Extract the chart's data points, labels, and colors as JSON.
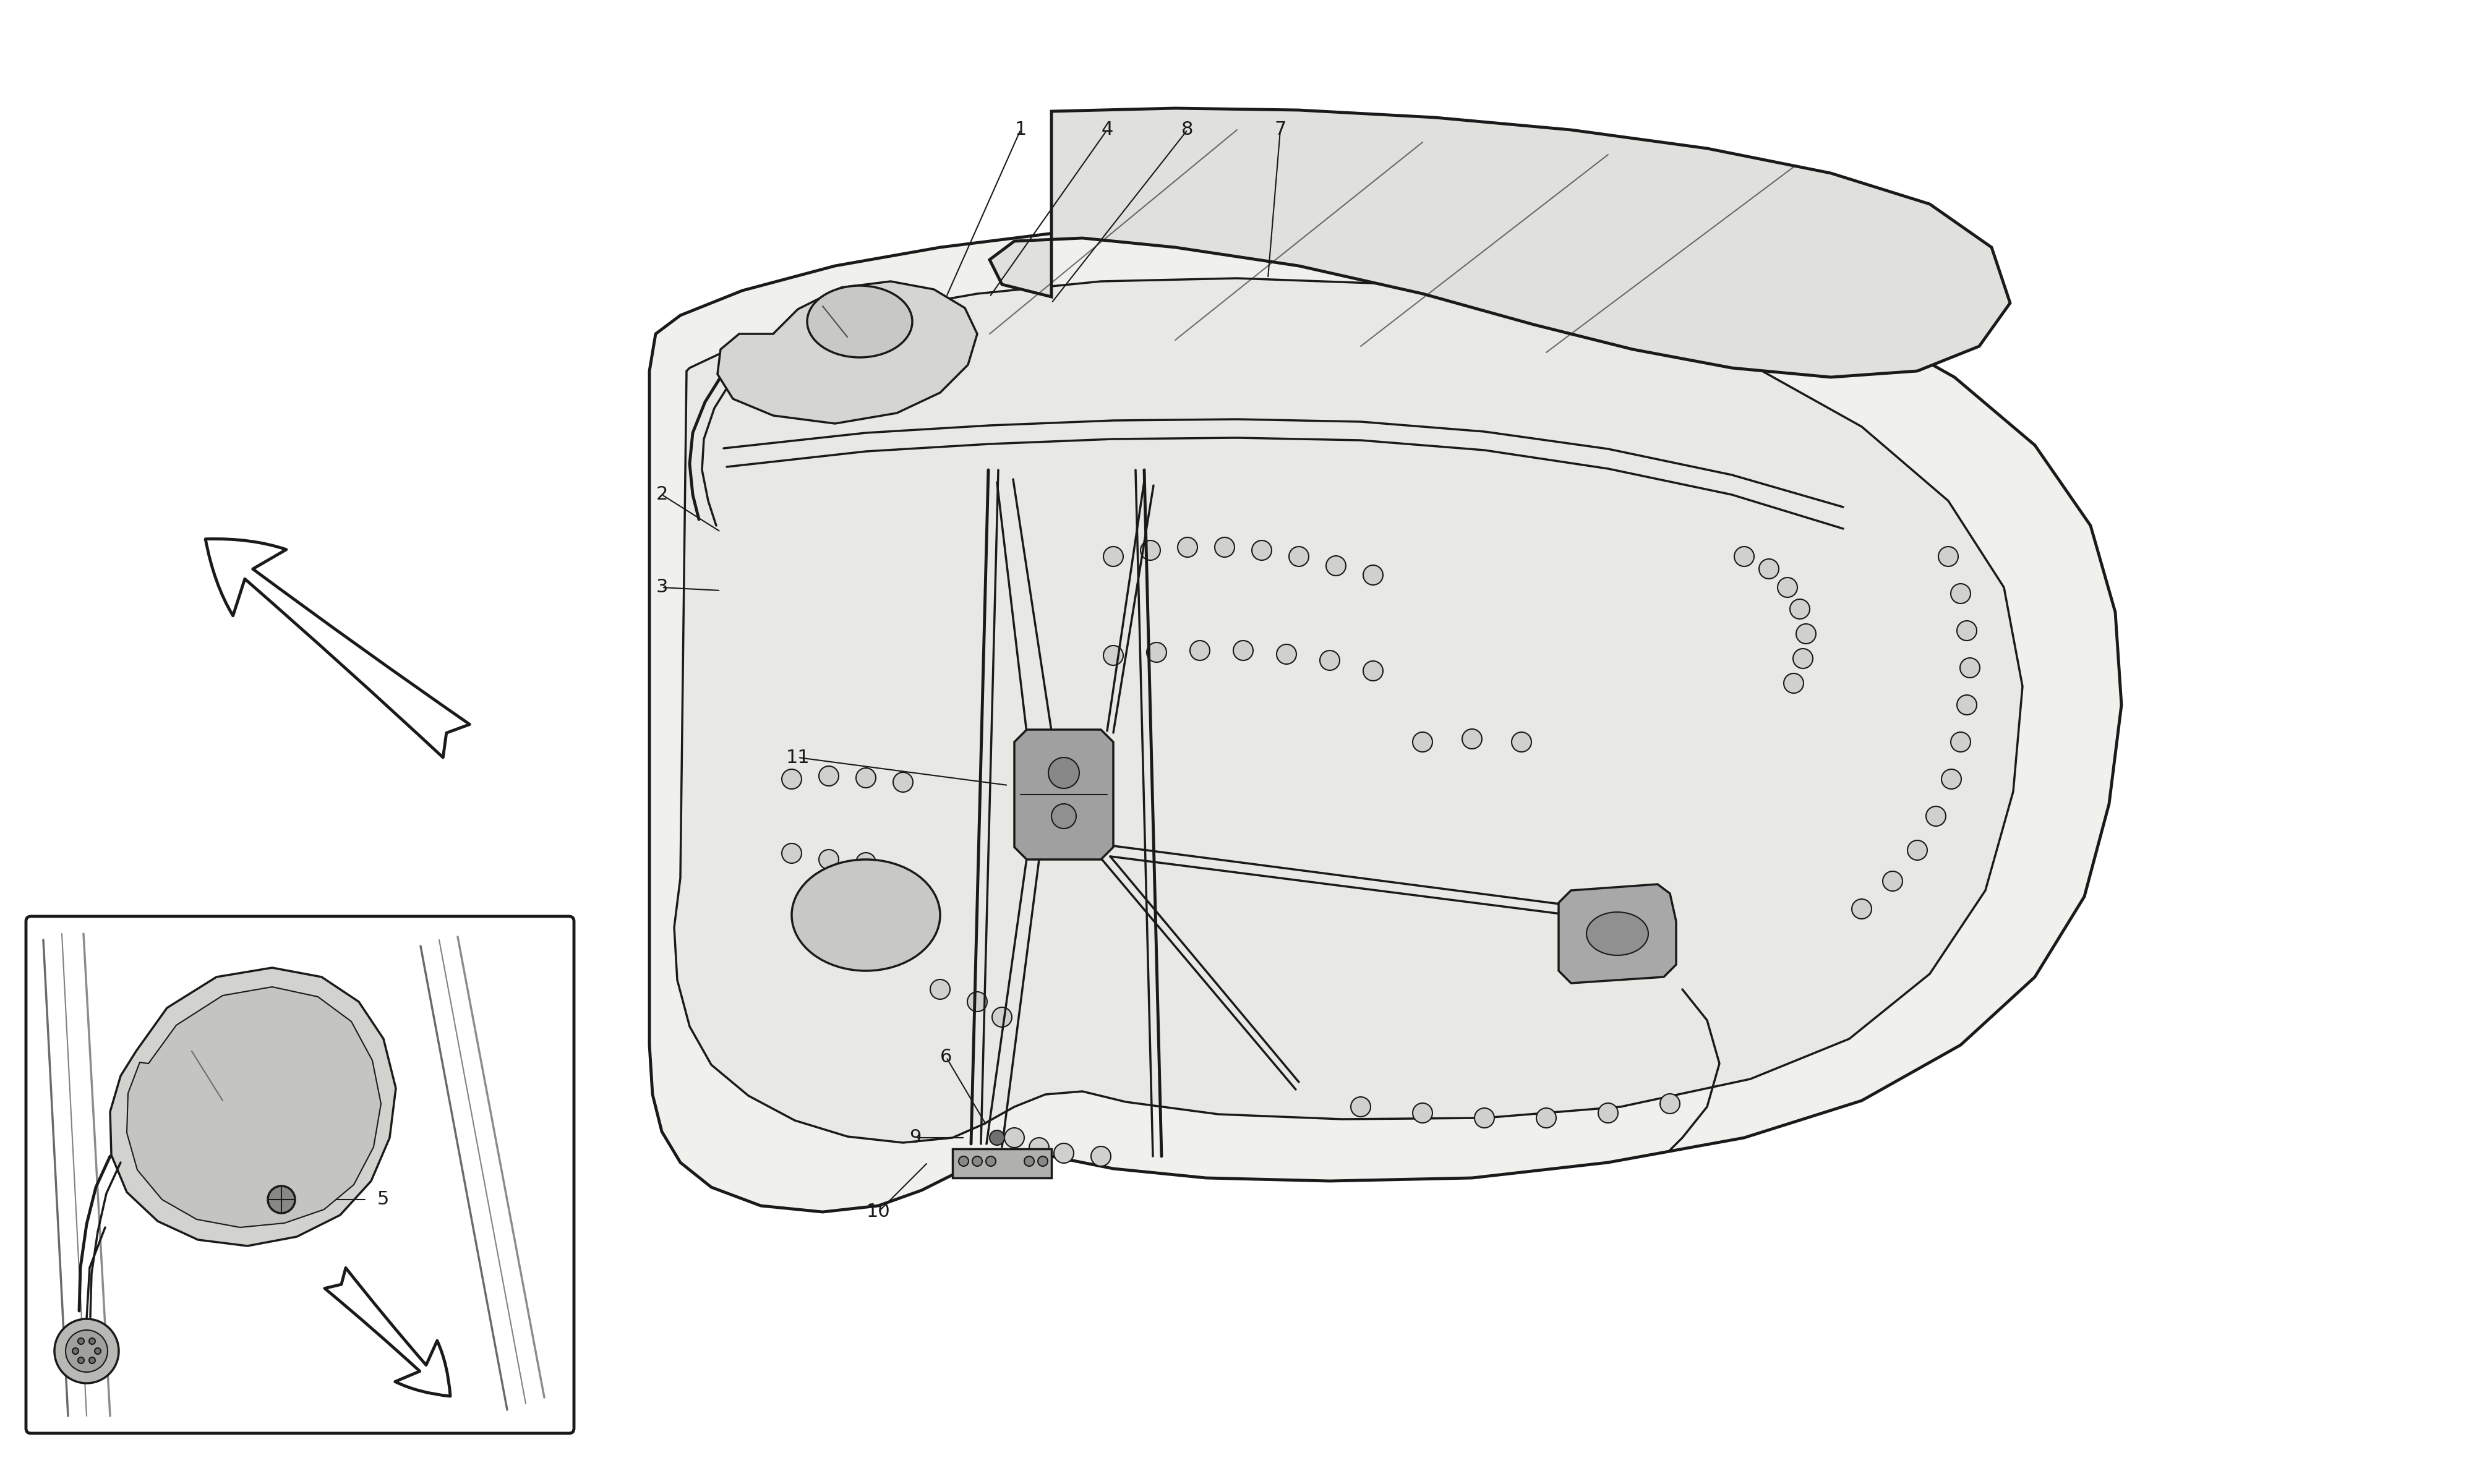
{
  "bg_color": "#ffffff",
  "line_color": "#1a1a1a",
  "label_fontsize": 22,
  "callout_data": [
    [
      "1",
      1650,
      210,
      1530,
      480
    ],
    [
      "4",
      1790,
      210,
      1600,
      480
    ],
    [
      "8",
      1920,
      210,
      1700,
      490
    ],
    [
      "7",
      2070,
      210,
      2050,
      450
    ],
    [
      "2",
      1070,
      800,
      1165,
      860
    ],
    [
      "3",
      1070,
      950,
      1165,
      955
    ],
    [
      "11",
      1290,
      1225,
      1630,
      1270
    ],
    [
      "6",
      1530,
      1710,
      1595,
      1820
    ],
    [
      "9",
      1480,
      1840,
      1560,
      1840
    ],
    [
      "10",
      1420,
      1960,
      1500,
      1880
    ]
  ]
}
